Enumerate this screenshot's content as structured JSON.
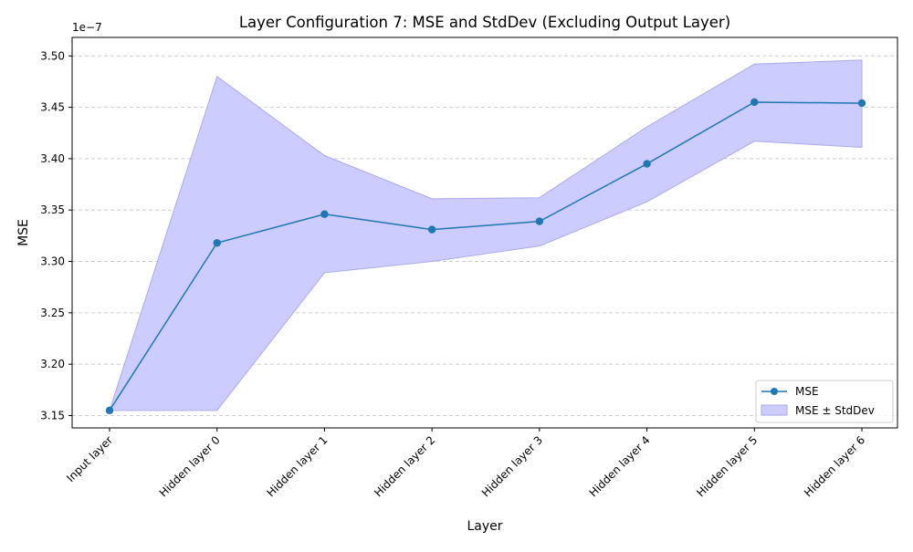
{
  "chart_data": {
    "type": "line",
    "title": "Layer Configuration 7: MSE and StdDev (Excluding Output Layer)",
    "xlabel": "Layer",
    "ylabel": "MSE",
    "y_offset_label": "1e−7",
    "categories": [
      "Input layer",
      "Hidden layer 0",
      "Hidden layer 1",
      "Hidden layer 2",
      "Hidden layer 3",
      "Hidden layer 4",
      "Hidden layer 5",
      "Hidden layer 6"
    ],
    "series": [
      {
        "name": "MSE",
        "values": [
          3.155,
          3.318,
          3.346,
          3.331,
          3.339,
          3.395,
          3.455,
          3.454
        ]
      }
    ],
    "band": {
      "name": "MSE ± StdDev",
      "lower": [
        3.155,
        3.155,
        3.289,
        3.3,
        3.315,
        3.358,
        3.417,
        3.411
      ],
      "upper": [
        3.155,
        3.48,
        3.403,
        3.361,
        3.362,
        3.431,
        3.492,
        3.496
      ]
    },
    "yticks": [
      "3.15",
      "3.20",
      "3.25",
      "3.30",
      "3.35",
      "3.40",
      "3.45",
      "3.50"
    ],
    "ylim": [
      3.138,
      3.518
    ],
    "grid": "y-dashed",
    "legend_position": "lower right",
    "colors": {
      "line": "#1f77b4",
      "band_fill": "#ccccff",
      "band_edge": "#aaaaee",
      "grid": "#cccccc"
    }
  }
}
